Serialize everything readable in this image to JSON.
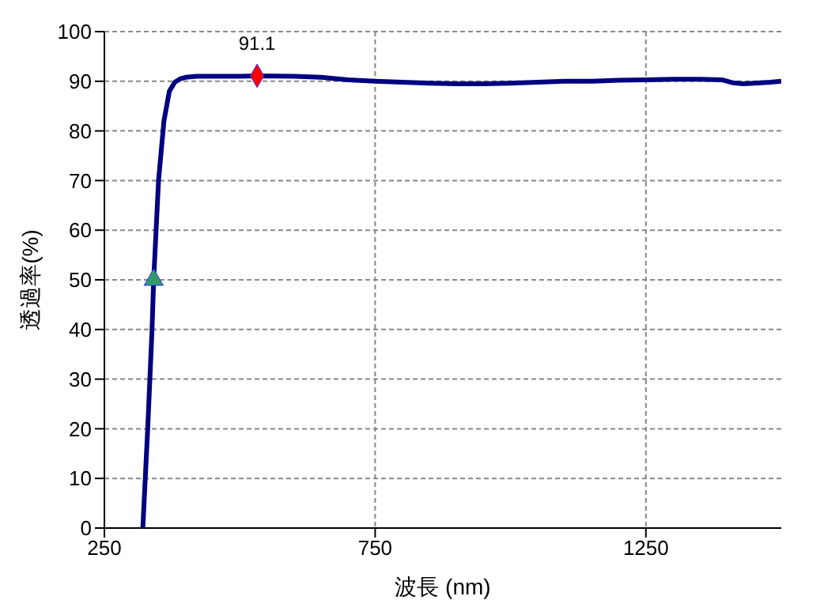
{
  "chart_data": {
    "type": "line",
    "xlabel": "波長 (nm)",
    "ylabel": "透過率(%)",
    "xlim": [
      250,
      1500
    ],
    "xticks": [
      250,
      750,
      1250
    ],
    "ylim": [
      0,
      100
    ],
    "yticks": [
      0,
      10,
      20,
      30,
      40,
      50,
      60,
      70,
      80,
      90,
      100
    ],
    "grid": true,
    "line_style": "solid",
    "series": [
      {
        "color": "#000080",
        "marker": "none",
        "x": [
          321,
          330,
          338,
          341,
          350,
          360,
          370,
          380,
          390,
          400,
          420,
          450,
          500,
          532,
          600,
          650,
          700,
          750,
          800,
          850,
          900,
          950,
          1000,
          1050,
          1100,
          1150,
          1200,
          1250,
          1300,
          1350,
          1390,
          1410,
          1430,
          1450,
          1480,
          1500
        ],
        "values": [
          0,
          20,
          40,
          50,
          70,
          82,
          88,
          89.8,
          90.5,
          90.8,
          91,
          91,
          91,
          91.1,
          91,
          90.8,
          90.3,
          90,
          89.8,
          89.6,
          89.5,
          89.5,
          89.6,
          89.8,
          90,
          90,
          90.2,
          90.3,
          90.4,
          90.4,
          90.3,
          89.7,
          89.5,
          89.6,
          89.8,
          90
        ]
      },
      {
        "type": "scatter",
        "color": "#339966",
        "marker": "triangle",
        "x": [
          341
        ],
        "values": [
          50
        ]
      },
      {
        "type": "scatter",
        "color": "#ff0000",
        "marker": "diamond",
        "x": [
          532
        ],
        "values": [
          91.1
        ],
        "value_labels": [
          "91.1"
        ]
      }
    ]
  }
}
